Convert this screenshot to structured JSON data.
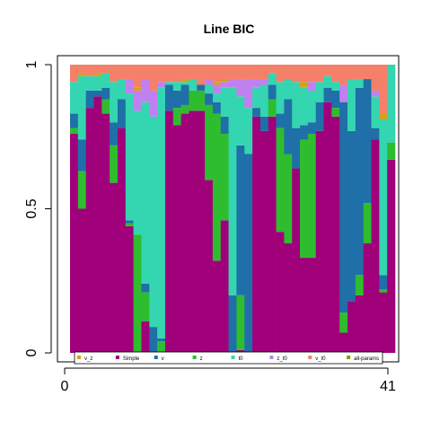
{
  "chart_data": {
    "type": "bar",
    "stacked": true,
    "title": "Line BIC",
    "xlabel": "",
    "ylabel": "",
    "x_ticks": [
      "0",
      "41"
    ],
    "y_ticks": [
      "0",
      "0.5",
      "1"
    ],
    "ylim": [
      0,
      1
    ],
    "legend_placement": "bottom",
    "legend_entries": [
      "v_z",
      "Simple",
      "v",
      "z",
      "t0",
      "z_t0",
      "v_t0",
      "all-params"
    ],
    "series_colors": {
      "Simple": "#a0007a",
      "z": "#2ebd2e",
      "v": "#1f6fa8",
      "t0": "#33d6b0",
      "z_t0": "#c080f0",
      "v_z": "#d4a017",
      "v_t0": "#f4806a",
      "all-params": "#7aa000"
    },
    "bars": [
      {
        "Simple": 0.76,
        "z": 0.02,
        "v": 0.05,
        "t0": 0.11,
        "z_t0": 0.0,
        "v_z": 0.0,
        "v_t0": 0.06,
        "all-params": 0.0
      },
      {
        "Simple": 0.5,
        "z": 0.13,
        "v": 0.11,
        "t0": 0.22,
        "z_t0": 0.0,
        "v_z": 0.01,
        "v_t0": 0.03,
        "all-params": 0.0
      },
      {
        "Simple": 0.85,
        "z": 0.0,
        "v": 0.06,
        "t0": 0.05,
        "z_t0": 0.0,
        "v_z": 0.0,
        "v_t0": 0.04,
        "all-params": 0.0
      },
      {
        "Simple": 0.89,
        "z": 0.0,
        "v": 0.02,
        "t0": 0.05,
        "z_t0": 0.0,
        "v_z": 0.01,
        "v_t0": 0.03,
        "all-params": 0.0
      },
      {
        "Simple": 0.83,
        "z": 0.05,
        "v": 0.04,
        "t0": 0.05,
        "z_t0": 0.0,
        "v_z": 0.0,
        "v_t0": 0.03,
        "all-params": 0.0
      },
      {
        "Simple": 0.59,
        "z": 0.13,
        "v": 0.08,
        "t0": 0.14,
        "z_t0": 0.0,
        "v_z": 0.0,
        "v_t0": 0.06,
        "all-params": 0.0
      },
      {
        "Simple": 0.78,
        "z": 0.0,
        "v": 0.1,
        "t0": 0.07,
        "z_t0": 0.0,
        "v_z": 0.0,
        "v_t0": 0.05,
        "all-params": 0.0
      },
      {
        "Simple": 0.44,
        "z": 0.01,
        "v": 0.01,
        "t0": 0.44,
        "z_t0": 0.05,
        "v_z": 0.0,
        "v_t0": 0.05,
        "all-params": 0.0
      },
      {
        "Simple": -0.01,
        "z": 0.42,
        "v": 0.0,
        "t0": 0.43,
        "z_t0": 0.07,
        "v_z": 0.01,
        "v_t0": 0.08,
        "all-params": 0.0
      },
      {
        "Simple": 0.11,
        "z": 0.1,
        "v": 0.03,
        "t0": 0.63,
        "z_t0": 0.08,
        "v_z": 0.0,
        "v_t0": 0.05,
        "all-params": 0.0
      },
      {
        "Simple": 0.0,
        "z": 0.0,
        "v": 0.09,
        "t0": 0.73,
        "z_t0": 0.09,
        "v_z": 0.0,
        "v_t0": 0.09,
        "all-params": 0.0
      },
      {
        "Simple": 0.0,
        "z": 0.04,
        "v": 0.01,
        "t0": 0.87,
        "z_t0": 0.02,
        "v_z": 0.0,
        "v_t0": 0.06,
        "all-params": 0.0
      },
      {
        "Simple": 0.84,
        "z": 0.0,
        "v": 0.09,
        "t0": 0.01,
        "z_t0": 0.0,
        "v_z": 0.0,
        "v_t0": 0.06,
        "all-params": 0.0
      },
      {
        "Simple": 0.79,
        "z": 0.06,
        "v": 0.06,
        "t0": 0.03,
        "z_t0": 0.0,
        "v_z": 0.0,
        "v_t0": 0.06,
        "all-params": 0.0
      },
      {
        "Simple": 0.83,
        "z": 0.03,
        "v": 0.07,
        "t0": 0.01,
        "z_t0": 0.0,
        "v_z": 0.01,
        "v_t0": 0.05,
        "all-params": 0.0
      },
      {
        "Simple": 0.84,
        "z": 0.07,
        "v": 0.0,
        "t0": 0.04,
        "z_t0": 0.0,
        "v_z": 0.0,
        "v_t0": 0.05,
        "all-params": 0.0
      },
      {
        "Simple": 0.84,
        "z": 0.07,
        "v": 0.02,
        "t0": 0.0,
        "z_t0": 0.0,
        "v_z": 0.0,
        "v_t0": 0.07,
        "all-params": 0.0
      },
      {
        "Simple": 0.6,
        "z": 0.26,
        "v": 0.04,
        "t0": 0.03,
        "z_t0": 0.02,
        "v_z": 0.0,
        "v_t0": 0.05,
        "all-params": 0.0
      },
      {
        "Simple": 0.32,
        "z": 0.51,
        "v": 0.04,
        "t0": 0.03,
        "z_t0": 0.03,
        "v_z": 0.01,
        "v_t0": 0.06,
        "all-params": 0.0
      },
      {
        "Simple": 0.46,
        "z": 0.3,
        "v": 0.06,
        "t0": 0.1,
        "z_t0": 0.02,
        "v_z": 0.01,
        "v_t0": 0.05,
        "all-params": 0.0
      },
      {
        "Simple": 0.0,
        "z": 0.0,
        "v": 0.2,
        "t0": 0.72,
        "z_t0": 0.03,
        "v_z": 0.0,
        "v_t0": 0.05,
        "all-params": 0.0
      },
      {
        "Simple": 0.01,
        "z": 0.19,
        "v": 0.52,
        "t0": 0.17,
        "z_t0": 0.06,
        "v_z": 0.0,
        "v_t0": 0.05,
        "all-params": 0.0
      },
      {
        "Simple": 0.0,
        "z": 0.0,
        "v": 0.69,
        "t0": 0.16,
        "z_t0": 0.1,
        "v_z": 0.0,
        "v_t0": 0.05,
        "all-params": 0.0
      },
      {
        "Simple": 0.82,
        "z": 0.0,
        "v": 0.03,
        "t0": 0.07,
        "z_t0": 0.03,
        "v_z": 0.0,
        "v_t0": 0.05,
        "all-params": 0.0
      },
      {
        "Simple": 0.77,
        "z": 0.0,
        "v": 0.05,
        "t0": 0.11,
        "z_t0": 0.02,
        "v_z": 0.0,
        "v_t0": 0.05,
        "all-params": 0.0
      },
      {
        "Simple": 0.82,
        "z": 0.06,
        "v": 0.05,
        "t0": 0.04,
        "z_t0": 0.0,
        "v_z": 0.0,
        "v_t0": 0.03,
        "all-params": 0.0
      },
      {
        "Simple": 0.42,
        "z": 0.36,
        "v": 0.05,
        "t0": 0.11,
        "z_t0": 0.0,
        "v_z": 0.0,
        "v_t0": 0.06,
        "all-params": 0.0
      },
      {
        "Simple": 0.38,
        "z": 0.31,
        "v": 0.19,
        "t0": 0.07,
        "z_t0": 0.0,
        "v_z": 0.0,
        "v_t0": 0.05,
        "all-params": 0.0
      },
      {
        "Simple": 0.64,
        "z": 0.0,
        "v": 0.14,
        "t0": 0.16,
        "z_t0": 0.0,
        "v_z": 0.0,
        "v_t0": 0.06,
        "all-params": 0.0
      },
      {
        "Simple": 0.33,
        "z": 0.41,
        "v": 0.05,
        "t0": 0.13,
        "z_t0": 0.0,
        "v_z": 0.02,
        "v_t0": 0.06,
        "all-params": 0.0
      },
      {
        "Simple": 0.33,
        "z": 0.43,
        "v": 0.04,
        "t0": 0.11,
        "z_t0": 0.03,
        "v_z": 0.0,
        "v_t0": 0.06,
        "all-params": 0.0
      },
      {
        "Simple": 0.77,
        "z": 0.0,
        "v": 0.1,
        "t0": 0.07,
        "z_t0": 0.0,
        "v_z": 0.0,
        "v_t0": 0.06,
        "all-params": 0.0
      },
      {
        "Simple": 0.87,
        "z": 0.0,
        "v": 0.05,
        "t0": 0.04,
        "z_t0": 0.0,
        "v_z": 0.0,
        "v_t0": 0.04,
        "all-params": 0.0
      },
      {
        "Simple": 0.82,
        "z": 0.03,
        "v": 0.06,
        "t0": 0.03,
        "z_t0": 0.0,
        "v_z": 0.0,
        "v_t0": 0.06,
        "all-params": 0.0
      },
      {
        "Simple": 0.07,
        "z": 0.07,
        "v": 0.73,
        "t0": 0.0,
        "z_t0": 0.06,
        "v_z": 0.0,
        "v_t0": 0.07,
        "all-params": 0.0
      },
      {
        "Simple": 0.18,
        "z": 0.0,
        "v": 0.59,
        "t0": 0.18,
        "z_t0": 0.0,
        "v_z": 0.0,
        "v_t0": 0.05,
        "all-params": 0.0
      },
      {
        "Simple": 0.2,
        "z": 0.07,
        "v": 0.65,
        "t0": 0.03,
        "z_t0": 0.0,
        "v_z": 0.0,
        "v_t0": 0.05,
        "all-params": 0.0
      },
      {
        "Simple": 0.38,
        "z": 0.14,
        "v": 0.43,
        "t0": 0.0,
        "z_t0": 0.0,
        "v_z": 0.0,
        "v_t0": 0.05,
        "all-params": 0.0
      },
      {
        "Simple": 0.74,
        "z": 0.0,
        "v": 0.04,
        "t0": 0.11,
        "z_t0": 0.02,
        "v_z": 0.0,
        "v_t0": 0.09,
        "all-params": 0.0
      },
      {
        "Simple": 0.21,
        "z": 0.01,
        "v": 0.05,
        "t0": 0.54,
        "z_t0": 0.0,
        "v_z": 0.02,
        "v_t0": 0.17,
        "all-params": 0.0
      },
      {
        "Simple": 0.67,
        "z": 0.06,
        "v": 0.0,
        "t0": 0.27,
        "z_t0": 0.0,
        "v_z": 0.0,
        "v_t0": 0.0,
        "all-params": 0.0
      }
    ]
  }
}
